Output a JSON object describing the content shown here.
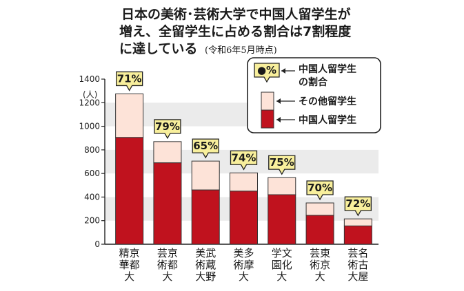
{
  "title_line1": "日本の美術･芸術大学で中国人留学生が",
  "title_line2": "増え、全留学生に占める割合は7割程度",
  "title_line3": "に達している",
  "title_note": "(令和6年5月時点)",
  "colors": {
    "chinese": "#c0121e",
    "other": "#fde3d8",
    "band": "#ebebeb",
    "badge": "#f8ef9c"
  },
  "legend": {
    "pct_symbol": "●%",
    "pct_line1": "中国人留学生",
    "pct_line2": "の割合",
    "other": "その他留学生",
    "chinese": "中国人留学生"
  },
  "chart_data": {
    "type": "bar",
    "stacked": true,
    "ylabel": "(人)",
    "ylim": [
      0,
      1400
    ],
    "yticks": [
      0,
      200,
      400,
      600,
      800,
      1000,
      1200,
      1400
    ],
    "categories": [
      "精京華都大",
      "芸京術都大",
      "美武術蔵大野",
      "美多術摩大",
      "学文園化大",
      "芸東術京大",
      "芸名術古大屋"
    ],
    "category_lines": [
      [
        "精京",
        "華都",
        "大"
      ],
      [
        "芸京",
        "術都",
        "大"
      ],
      [
        "美武",
        "術蔵",
        "大野"
      ],
      [
        "美多",
        "術摩",
        "大"
      ],
      [
        "学文",
        "園化",
        "大"
      ],
      [
        "芸東",
        "術京",
        "大"
      ],
      [
        "芸名",
        "術古",
        "大屋"
      ]
    ],
    "series": [
      {
        "name": "中国人留学生",
        "values": [
          905,
          690,
          460,
          450,
          420,
          245,
          155
        ]
      },
      {
        "name": "その他留学生",
        "values": [
          370,
          180,
          245,
          155,
          145,
          105,
          60
        ]
      }
    ],
    "percent_labels": [
      "71%",
      "79%",
      "65%",
      "74%",
      "75%",
      "70%",
      "72%"
    ]
  }
}
